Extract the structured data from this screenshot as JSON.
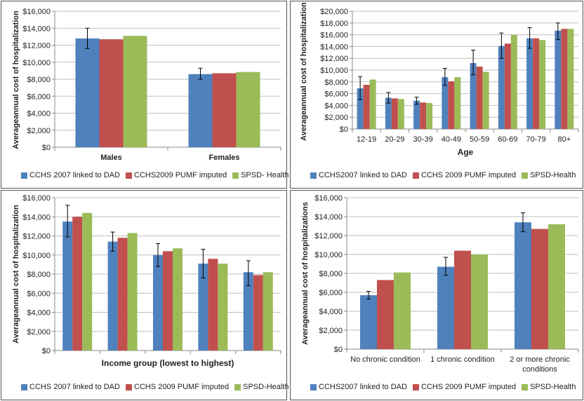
{
  "colors": {
    "s0": "#4f81bd",
    "s1": "#c0504d",
    "s2": "#9bbb59"
  },
  "chart_data": [
    {
      "type": "bar",
      "categories": [
        "Males",
        "Females"
      ],
      "ylabel": "Averageannual cost of hospitalization",
      "xlabel": "",
      "ylim": [
        0,
        16000
      ],
      "yticks": [
        "$0",
        "$2,000",
        "$4,000",
        "$6,000",
        "$8,000",
        "$10,000",
        "$12,000",
        "$14,000",
        "$16,000"
      ],
      "series": [
        {
          "name": "CCHS 2007 linked to DAD",
          "values": [
            12800,
            8600
          ],
          "errors": [
            [
              11600,
              14000
            ],
            [
              8000,
              9300
            ]
          ]
        },
        {
          "name": "CCHS2009 PUMF imputed",
          "values": [
            12700,
            8700
          ]
        },
        {
          "name": "SPSD- Health",
          "values": [
            13100,
            8850
          ]
        }
      ],
      "grid": true,
      "legend": "bottom"
    },
    {
      "type": "bar",
      "categories": [
        "12-19",
        "20-29",
        "30-39",
        "40-49",
        "50-59",
        "60-69",
        "70-79",
        "80+"
      ],
      "ylabel": "Averageannual cost of hospitalization",
      "xlabel": "Age",
      "ylim": [
        0,
        20000
      ],
      "yticks": [
        "$0",
        "$2,000",
        "$4,000",
        "$6,000",
        "$8,000",
        "$10,000",
        "$12,000",
        "$14,000",
        "$16,000",
        "$18,000",
        "$20,000"
      ],
      "series": [
        {
          "name": "CCHS2007 linked to DAD",
          "values": [
            6900,
            5300,
            4800,
            8800,
            11200,
            14100,
            15400,
            16700
          ],
          "errors": [
            [
              5000,
              8900
            ],
            [
              4400,
              6200
            ],
            [
              4200,
              5400
            ],
            [
              7400,
              10300
            ],
            [
              9200,
              13400
            ],
            [
              12000,
              16300
            ],
            [
              13700,
              17200
            ],
            [
              15200,
              18000
            ]
          ]
        },
        {
          "name": "CCHS 2009 PUMF imputed",
          "values": [
            7500,
            5200,
            4500,
            8100,
            10600,
            14500,
            15400,
            17000
          ]
        },
        {
          "name": "SPSD-Health",
          "values": [
            8400,
            5100,
            4400,
            8800,
            9700,
            16000,
            15100,
            17000
          ]
        }
      ],
      "grid": true,
      "legend": "bottom"
    },
    {
      "type": "bar",
      "categories": [
        "",
        "",
        "",
        "",
        ""
      ],
      "ylabel": "Averageannual cost of hospitalization",
      "xlabel": "Income group (lowest to highest)",
      "ylim": [
        0,
        16000
      ],
      "yticks": [
        "$0",
        "$2,000",
        "$4,000",
        "$6,000",
        "$8,000",
        "$10,000",
        "$12,000",
        "$14,000",
        "$16,000"
      ],
      "series": [
        {
          "name": "CCHS 2007 linked to DAD",
          "values": [
            13500,
            11400,
            10000,
            9100,
            8200
          ],
          "errors": [
            [
              11900,
              15200
            ],
            [
              10400,
              12400
            ],
            [
              8800,
              11200
            ],
            [
              7600,
              10600
            ],
            [
              6800,
              9400
            ]
          ]
        },
        {
          "name": "CCHS 2009 PUMF imputed",
          "values": [
            14000,
            11800,
            10400,
            9600,
            7900
          ]
        },
        {
          "name": "SPSD-Health",
          "values": [
            14400,
            12300,
            10700,
            9100,
            8200
          ]
        }
      ],
      "grid": true,
      "legend": "bottom"
    },
    {
      "type": "bar",
      "categories": [
        "No chronic condition",
        "1 chronic condition",
        "2 or more chronic conditions"
      ],
      "ylabel": "Averageannual cost of hospitalizations",
      "xlabel": "",
      "ylim": [
        0,
        16000
      ],
      "yticks": [
        "$0",
        "$2,000",
        "$4,000",
        "$6,000",
        "$8,000",
        "$10,000",
        "$12,000",
        "$14,000",
        "$16,000"
      ],
      "series": [
        {
          "name": "CCHS2007 linked to DAD",
          "values": [
            5700,
            8700,
            13400
          ],
          "errors": [
            [
              5300,
              6100
            ],
            [
              7800,
              9700
            ],
            [
              12400,
              14400
            ]
          ]
        },
        {
          "name": "CCHS 2009 PUMF imputed",
          "values": [
            7300,
            10400,
            12700
          ]
        },
        {
          "name": "SPSD-Health",
          "values": [
            8100,
            10000,
            13200
          ]
        }
      ],
      "grid": true,
      "legend": "bottom"
    }
  ]
}
